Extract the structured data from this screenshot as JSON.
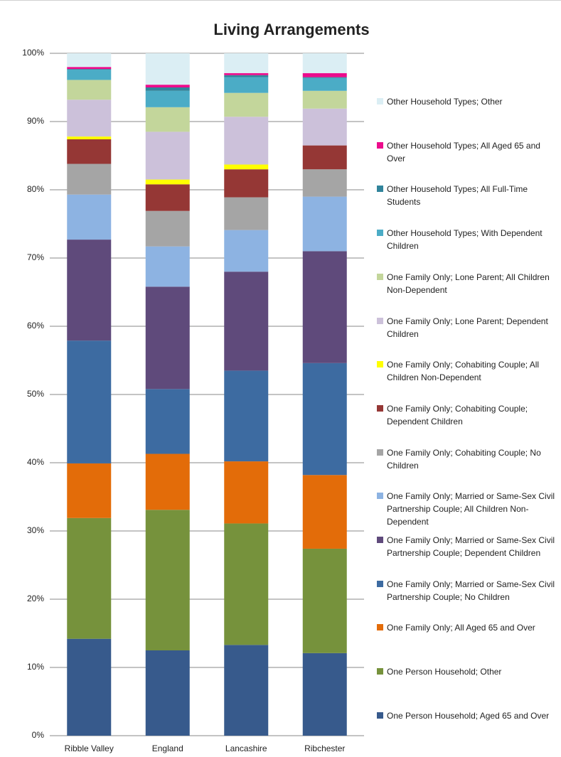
{
  "chart_data": {
    "type": "stacked_bar",
    "title": "Living Arrangements",
    "categories": [
      "Ribble Valley",
      "England",
      "Lancashire",
      "Ribchester"
    ],
    "ylim": [
      0,
      100
    ],
    "yticks": [
      {
        "value": 0,
        "label": "0%"
      },
      {
        "value": 10,
        "label": "10%"
      },
      {
        "value": 20,
        "label": "20%"
      },
      {
        "value": 30,
        "label": "30%"
      },
      {
        "value": 40,
        "label": "40%"
      },
      {
        "value": 50,
        "label": "50%"
      },
      {
        "value": 60,
        "label": "60%"
      },
      {
        "value": 70,
        "label": "70%"
      },
      {
        "value": 80,
        "label": "80%"
      },
      {
        "value": 90,
        "label": "90%"
      },
      {
        "value": 100,
        "label": "100%"
      }
    ],
    "grid": true,
    "legend": "right",
    "series": [
      {
        "name": "One Person Household; Aged 65 and Over",
        "color": "#375a8c",
        "values": [
          14.2,
          12.5,
          13.3,
          12.1
        ]
      },
      {
        "name": "One Person Household; Other",
        "color": "#76923c",
        "values": [
          17.7,
          20.6,
          17.8,
          15.3
        ]
      },
      {
        "name": "One Family Only; All Aged 65 and Over",
        "color": "#e36c09",
        "values": [
          8.0,
          8.2,
          9.1,
          10.8
        ]
      },
      {
        "name": "One Family Only; Married or Same-Sex Civil Partnership Couple; No Children",
        "color": "#3d6ba1",
        "values": [
          18.0,
          9.5,
          13.3,
          16.4
        ]
      },
      {
        "name": "One Family Only; Married or Same-Sex Civil Partnership Couple; Dependent Children",
        "color": "#5f4a7b",
        "values": [
          14.8,
          15.0,
          14.5,
          16.4
        ]
      },
      {
        "name": "One Family Only; Married or Same-Sex Civil Partnership Couple; All Children Non-Dependent",
        "color": "#8db3e2",
        "values": [
          6.6,
          5.9,
          6.1,
          8.0
        ]
      },
      {
        "name": "One Family Only; Cohabiting Couple; No Children",
        "color": "#a5a5a5",
        "values": [
          4.5,
          5.2,
          4.8,
          4.0
        ]
      },
      {
        "name": "One Family Only; Cohabiting Couple; Dependent Children",
        "color": "#953735",
        "values": [
          3.6,
          3.9,
          4.1,
          3.5
        ]
      },
      {
        "name": "One Family Only; Cohabiting Couple; All Children Non-Dependent",
        "color": "#ffff00",
        "values": [
          0.4,
          0.7,
          0.7,
          0.0
        ]
      },
      {
        "name": "One Family Only; Lone Parent; Dependent Children",
        "color": "#ccc1da",
        "values": [
          5.4,
          7.0,
          7.0,
          5.4
        ]
      },
      {
        "name": "One Family Only; Lone Parent; All Children Non-Dependent",
        "color": "#c3d69b",
        "values": [
          2.9,
          3.6,
          3.5,
          2.6
        ]
      },
      {
        "name": "Other Household Types; With Dependent Children",
        "color": "#4bacc6",
        "values": [
          1.5,
          2.4,
          2.3,
          1.9
        ]
      },
      {
        "name": "Other Household Types; All Full-Time Students",
        "color": "#31849b",
        "values": [
          0.1,
          0.5,
          0.3,
          0.1
        ]
      },
      {
        "name": "Other Household Types; All Aged 65 and Over",
        "color": "#ec0c8c",
        "values": [
          0.3,
          0.4,
          0.3,
          0.6
        ]
      },
      {
        "name": "Other Household Types; Other",
        "color": "#dbeef4",
        "values": [
          2.0,
          4.6,
          2.9,
          2.9
        ]
      }
    ]
  }
}
